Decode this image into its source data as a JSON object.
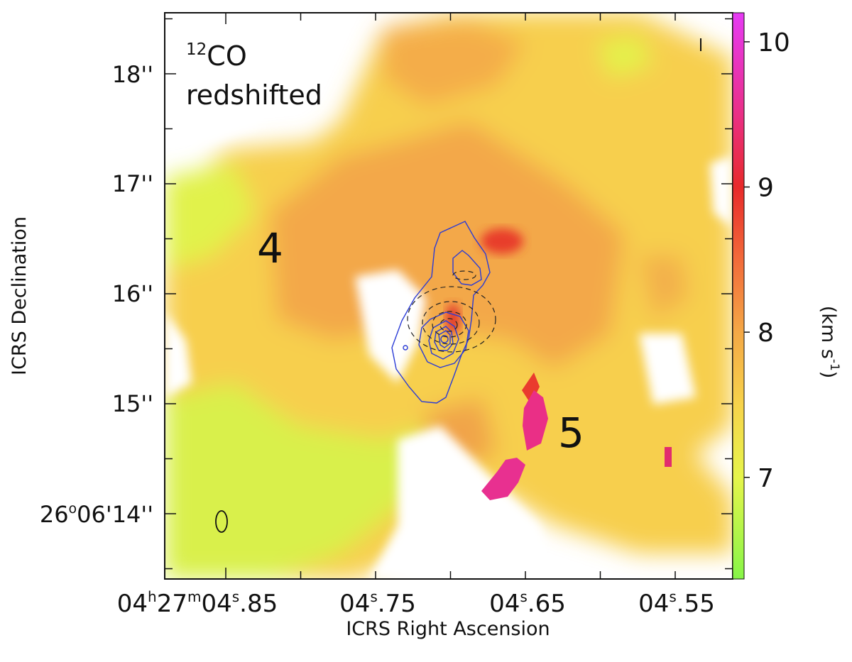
{
  "chart_data": {
    "type": "heatmap",
    "title_molecule": "CO",
    "title_isotope": "12",
    "title_component": "redshifted",
    "xlabel": "ICRS Right Ascension",
    "ylabel": "ICRS Declination",
    "colorbar_label": "(km s",
    "colorbar_label_exp": "-1",
    "colorbar_label_end": ")",
    "colorbar_range": [
      6.3,
      10.2
    ],
    "colorbar_ticks": [
      {
        "value": 10,
        "label": "10"
      },
      {
        "value": 9,
        "label": "9"
      },
      {
        "value": 8,
        "label": "8"
      },
      {
        "value": 7,
        "label": "7"
      }
    ],
    "colormap": [
      {
        "value": 6.3,
        "color": "#86f548"
      },
      {
        "value": 7.0,
        "color": "#e6f54b"
      },
      {
        "value": 7.5,
        "color": "#f7d34b"
      },
      {
        "value": 8.0,
        "color": "#f4a846"
      },
      {
        "value": 8.5,
        "color": "#f26a3a"
      },
      {
        "value": 9.0,
        "color": "#e82a2a"
      },
      {
        "value": 9.5,
        "color": "#ea2f86"
      },
      {
        "value": 10.2,
        "color": "#e63af5"
      }
    ],
    "x_ticks": [
      {
        "prefix": "04",
        "h": "h",
        "mid": "27",
        "m": "m",
        "sec": "04",
        "s": "s",
        "frac": ".85"
      },
      {
        "prefix": "",
        "h": "",
        "mid": "",
        "m": "",
        "sec": "04",
        "s": "s",
        "frac": ".75"
      },
      {
        "prefix": "",
        "h": "",
        "mid": "",
        "m": "",
        "sec": "04",
        "s": "s",
        "frac": ".65"
      },
      {
        "prefix": "",
        "h": "",
        "mid": "",
        "m": "",
        "sec": "04",
        "s": "s",
        "frac": ".55"
      }
    ],
    "y_ticks": [
      {
        "label": "18''"
      },
      {
        "label": "17''"
      },
      {
        "label": "16''"
      },
      {
        "label": "15''"
      },
      {
        "label": "26",
        "sup": "o",
        "rest": "06'14''"
      }
    ],
    "annotations": [
      {
        "id": "lobe-4",
        "text": "4"
      },
      {
        "id": "lobe-5",
        "text": "5"
      }
    ],
    "series": [
      {
        "name": "redshifted 12CO velocity field",
        "representative_values_kms": [
          7.0,
          7.5,
          8.0,
          8.6,
          9.0,
          10.0
        ]
      },
      {
        "name": "continuum contours",
        "color": "#2a3bd6",
        "style": "solid"
      },
      {
        "name": "blueshifted contours",
        "color": "#222222",
        "style": "dashed"
      }
    ],
    "beam": "ellipse"
  }
}
